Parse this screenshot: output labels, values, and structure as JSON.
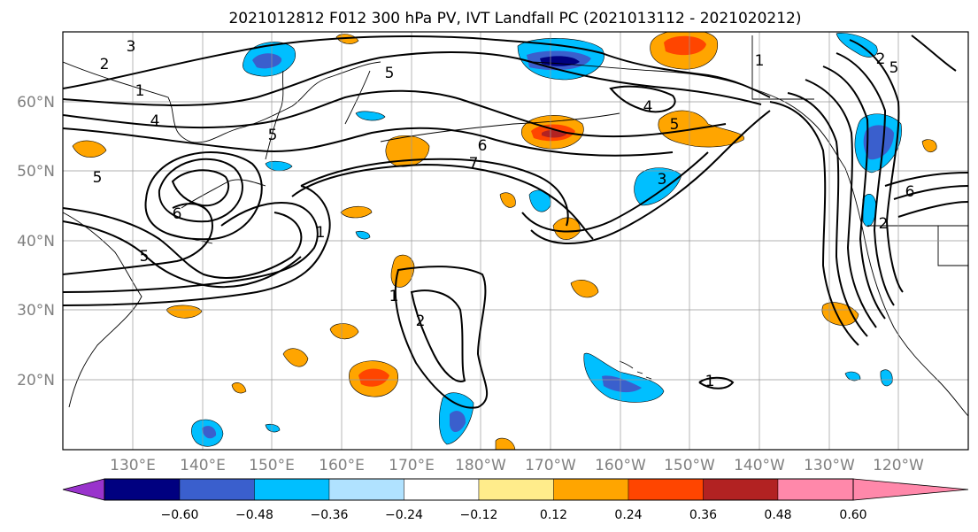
{
  "title": "2021012812 F012 300 hPa PV, IVT Landfall PC (2021013112 - 2021020212)",
  "map": {
    "lat_labels": [
      "60°N",
      "50°N",
      "40°N",
      "30°N",
      "20°N"
    ],
    "lon_labels": [
      "130°E",
      "140°E",
      "150°E",
      "160°E",
      "170°E",
      "180°W",
      "170°W",
      "160°W",
      "150°W",
      "140°W",
      "130°W",
      "120°W"
    ],
    "contour_labels": [
      "3",
      "2",
      "1",
      "4",
      "5",
      "5",
      "5",
      "6",
      "7",
      "6",
      "5",
      "1",
      "1",
      "2",
      "4",
      "5",
      "3",
      "1",
      "2",
      "5",
      "6",
      "1",
      "2"
    ]
  },
  "colorbar": {
    "ticks": [
      "−0.60",
      "−0.48",
      "−0.36",
      "−0.24",
      "−0.12",
      "0.12",
      "0.24",
      "0.36",
      "0.48",
      "0.60"
    ],
    "colors": [
      "#9933cc",
      "#000080",
      "#3a5fcd",
      "#00bfff",
      "#b0e2ff",
      "#ffffff",
      "#ffec8b",
      "#ffa500",
      "#ff4500",
      "#b22222",
      "#ff88aa"
    ]
  }
}
